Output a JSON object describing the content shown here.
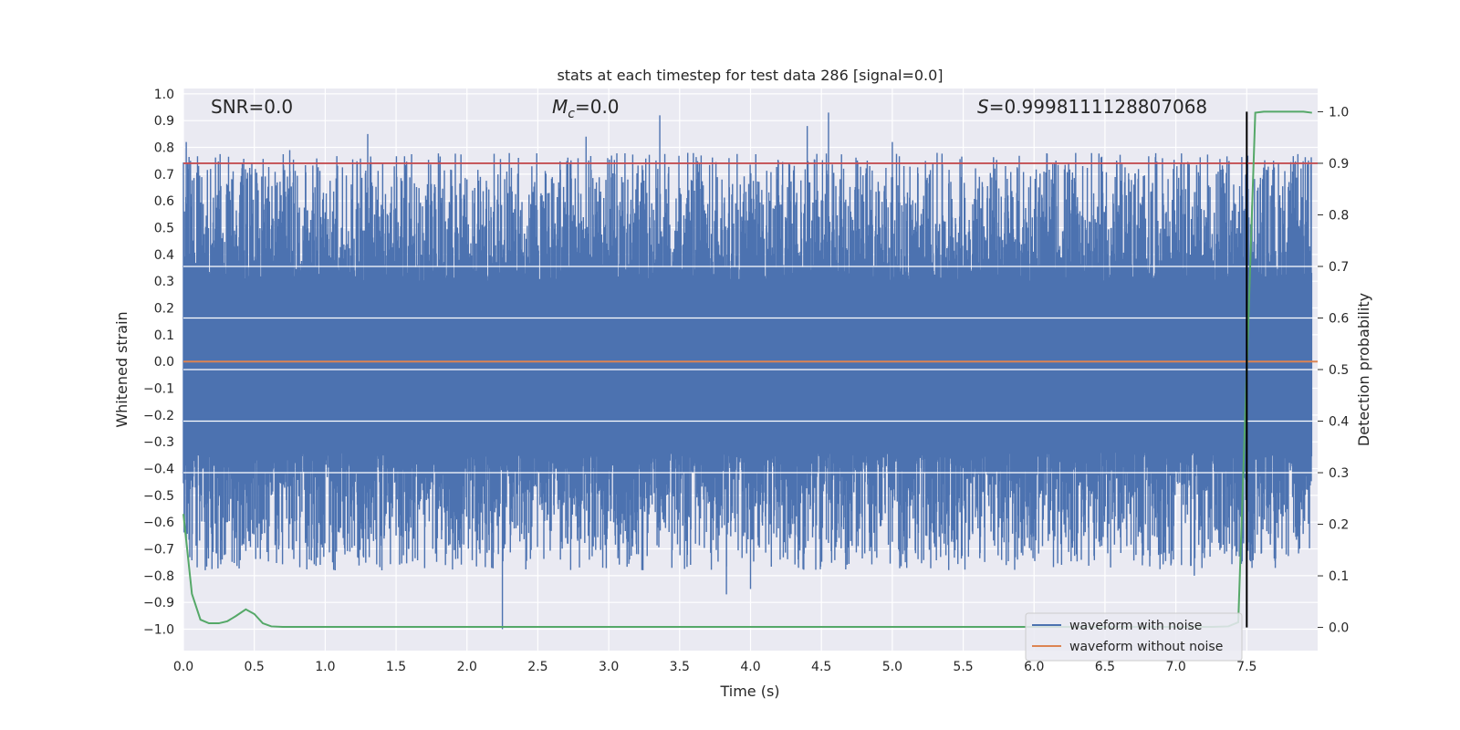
{
  "chart_data": {
    "type": "line",
    "title": "stats at each timestep for test data 286 [signal=0.0]",
    "xlabel": "Time (s)",
    "ylabel": "Whitened strain",
    "y2label": "Detection probability",
    "xlim": [
      0.0,
      8.0
    ],
    "ylim": [
      -1.08,
      1.02
    ],
    "y2lim": [
      -0.045,
      1.045
    ],
    "xticks": [
      "0.0",
      "0.5",
      "1.0",
      "1.5",
      "2.0",
      "2.5",
      "3.0",
      "3.5",
      "4.0",
      "4.5",
      "5.0",
      "5.5",
      "6.0",
      "6.5",
      "7.0",
      "7.5"
    ],
    "yticks": [
      "1.0",
      "0.9",
      "0.8",
      "0.7",
      "0.6",
      "0.5",
      "0.4",
      "0.3",
      "0.2",
      "0.1",
      "0.0",
      "−0.1",
      "−0.2",
      "−0.3",
      "−0.4",
      "−0.5",
      "−0.6",
      "−0.7",
      "−0.8",
      "−0.9",
      "−1.0"
    ],
    "y2ticks": [
      "0.0",
      "0.1",
      "0.2",
      "0.3",
      "0.4",
      "0.5",
      "0.6",
      "0.7",
      "0.8",
      "0.9",
      "1.0"
    ],
    "annotations": {
      "snr": "SNR=0.0",
      "mc_symbol": "M",
      "mc_sub": "c",
      "mc_value": "=0.0",
      "s_symbol": "S",
      "s_value": "=0.9998111128807068"
    },
    "threshold_line": {
      "value": 0.9,
      "axis": "right",
      "color": "#c44e52"
    },
    "vertical_marker": {
      "x": 7.5,
      "y_from": 0.0,
      "y_to": 1.0,
      "axis": "right",
      "color": "#000000"
    },
    "series": [
      {
        "name": "waveform with noise",
        "color": "#4c72b0",
        "kind": "noise",
        "duration": 7.96,
        "core_amplitude": 0.3,
        "notable_spikes": [
          {
            "x": 0.02,
            "y": 0.82
          },
          {
            "x": 0.05,
            "y": 0.75
          },
          {
            "x": 0.75,
            "y": 0.79
          },
          {
            "x": 1.3,
            "y": 0.85
          },
          {
            "x": 2.25,
            "y": -1.0
          },
          {
            "x": 2.84,
            "y": 0.84
          },
          {
            "x": 3.36,
            "y": 0.92
          },
          {
            "x": 3.83,
            "y": -0.87
          },
          {
            "x": 4.0,
            "y": -0.85
          },
          {
            "x": 4.4,
            "y": 0.88
          },
          {
            "x": 4.55,
            "y": 0.93
          },
          {
            "x": 5.0,
            "y": 0.82
          },
          {
            "x": 1.07,
            "y": -0.78
          },
          {
            "x": 1.4,
            "y": -0.78
          },
          {
            "x": 7.13,
            "y": -0.8
          }
        ]
      },
      {
        "name": "waveform without noise",
        "color": "#dd8452",
        "x": [
          0.0,
          8.0
        ],
        "y": [
          0.0,
          0.0
        ]
      },
      {
        "name": "detection probability",
        "color": "#55a868",
        "axis": "right",
        "x": [
          0.0,
          0.06,
          0.12,
          0.18,
          0.25,
          0.31,
          0.37,
          0.44,
          0.5,
          0.56,
          0.62,
          0.7,
          7.0,
          7.25,
          7.37,
          7.44,
          7.5,
          7.56,
          7.62,
          7.75,
          7.9,
          7.96
        ],
        "y": [
          0.22,
          0.065,
          0.015,
          0.008,
          0.008,
          0.012,
          0.022,
          0.035,
          0.026,
          0.008,
          0.002,
          0.001,
          0.001,
          0.001,
          0.002,
          0.01,
          0.5,
          0.998,
          1.0,
          1.0,
          1.0,
          0.998
        ]
      }
    ],
    "legend": {
      "position": "lower-right",
      "entries": [
        {
          "label": "waveform with noise",
          "color": "#4c72b0"
        },
        {
          "label": "waveform without noise",
          "color": "#dd8452"
        }
      ]
    }
  }
}
